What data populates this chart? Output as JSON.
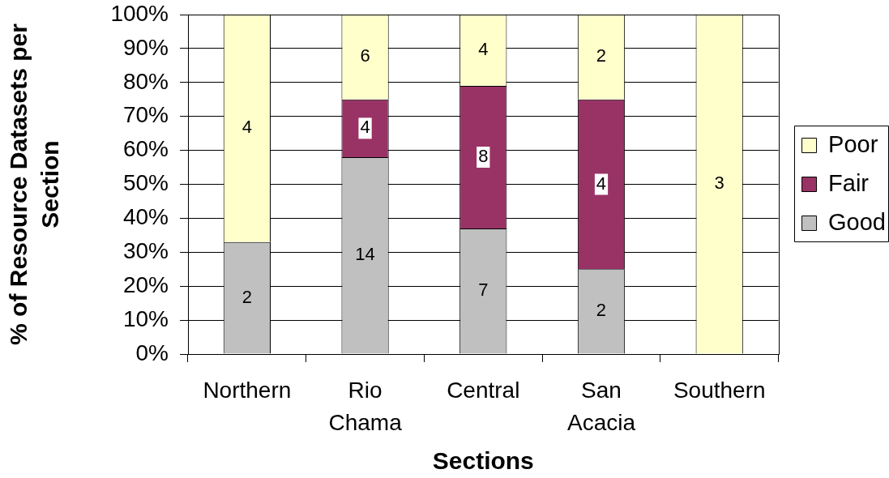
{
  "chart_data": {
    "type": "bar",
    "stacked": true,
    "xlabel": "Sections",
    "ylabel": "% of Resource Datasets per Section",
    "categories": [
      "Northern",
      "Rio Chama",
      "Central",
      "San Acacia",
      "Southern"
    ],
    "series": [
      {
        "name": "Good",
        "color": "#c0c0c0",
        "values": [
          33,
          58,
          37,
          25,
          null
        ]
      },
      {
        "name": "Fair",
        "color": "#993366",
        "values": [
          null,
          17,
          42,
          50,
          null
        ]
      },
      {
        "name": "Poor",
        "color": "#ffffcc",
        "values": [
          67,
          25,
          21,
          25,
          100
        ]
      }
    ],
    "annotations": [
      "2",
      "4",
      "14",
      "4",
      "6",
      "7",
      "8",
      "4",
      "2",
      "4",
      "2",
      "3"
    ],
    "ylim": [
      0,
      100
    ],
    "yticks": [
      {
        "value": 0,
        "label": "0%"
      },
      {
        "value": 10,
        "label": "10%"
      },
      {
        "value": 20,
        "label": "20%"
      },
      {
        "value": 30,
        "label": "30%"
      },
      {
        "value": 40,
        "label": "40%"
      },
      {
        "value": 50,
        "label": "50%"
      },
      {
        "value": 60,
        "label": "60%"
      },
      {
        "value": 70,
        "label": "70%"
      },
      {
        "value": 80,
        "label": "80%"
      },
      {
        "value": 90,
        "label": "90%"
      },
      {
        "value": 100,
        "label": "100%"
      }
    ],
    "grid": "y",
    "legend": "right"
  }
}
